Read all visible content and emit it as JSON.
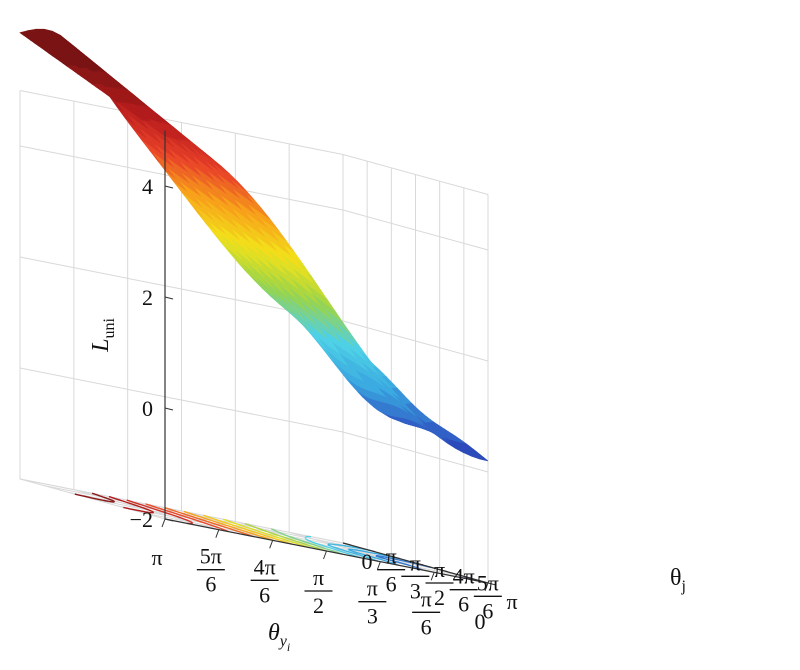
{
  "chart_data": {
    "type": "surface",
    "zlabel_main": "L",
    "zlabel_sub": "uni",
    "xlabel_main": "θ",
    "xlabel_sub": "y",
    "xlabel_subsub": "i",
    "ylabel_main": "θ",
    "ylabel_sub": "j",
    "zlim": [
      -2,
      5
    ],
    "z_ticks": [
      {
        "value": -2,
        "label": "−2"
      },
      {
        "value": 0,
        "label": "0"
      },
      {
        "value": 2,
        "label": "2"
      },
      {
        "value": 4,
        "label": "4"
      }
    ],
    "x_ticks": [
      {
        "value": 3.1416,
        "num": "π",
        "den": ""
      },
      {
        "value": 2.618,
        "num": "5π",
        "den": "6"
      },
      {
        "value": 2.0944,
        "num": "4π",
        "den": "6"
      },
      {
        "value": 1.5708,
        "num": "π",
        "den": "2"
      },
      {
        "value": 1.0472,
        "num": "π",
        "den": "3"
      },
      {
        "value": 0.5236,
        "num": "π",
        "den": "6"
      },
      {
        "value": 0,
        "num": "0",
        "den": ""
      }
    ],
    "y_ticks": [
      {
        "value": 3.1416,
        "num": "π",
        "den": ""
      },
      {
        "value": 2.618,
        "num": "5π",
        "den": "6"
      },
      {
        "value": 2.0944,
        "num": "4π",
        "den": "6"
      },
      {
        "value": 1.5708,
        "num": "π",
        "den": "2"
      },
      {
        "value": 1.0472,
        "num": "π",
        "den": "3"
      },
      {
        "value": 0.5236,
        "num": "π",
        "den": "6"
      },
      {
        "value": 0,
        "num": "0",
        "den": ""
      }
    ],
    "surface_corners": {
      "theta_y_pi__theta_j_pi": 4.9,
      "theta_y_pi__theta_j_0": 5.8,
      "theta_y_0__theta_j_pi": 0.2,
      "theta_y_0__theta_j_0": 1.7
    },
    "surface_extrema": {
      "max": 5.8,
      "min": -0.3
    },
    "colormap": [
      "#1b2a8a",
      "#2f4fbf",
      "#3aa7e0",
      "#4fd0e6",
      "#9bd449",
      "#f2e21b",
      "#f7a21b",
      "#e8402a",
      "#b81d1d",
      "#7a1414"
    ],
    "grid": true
  }
}
